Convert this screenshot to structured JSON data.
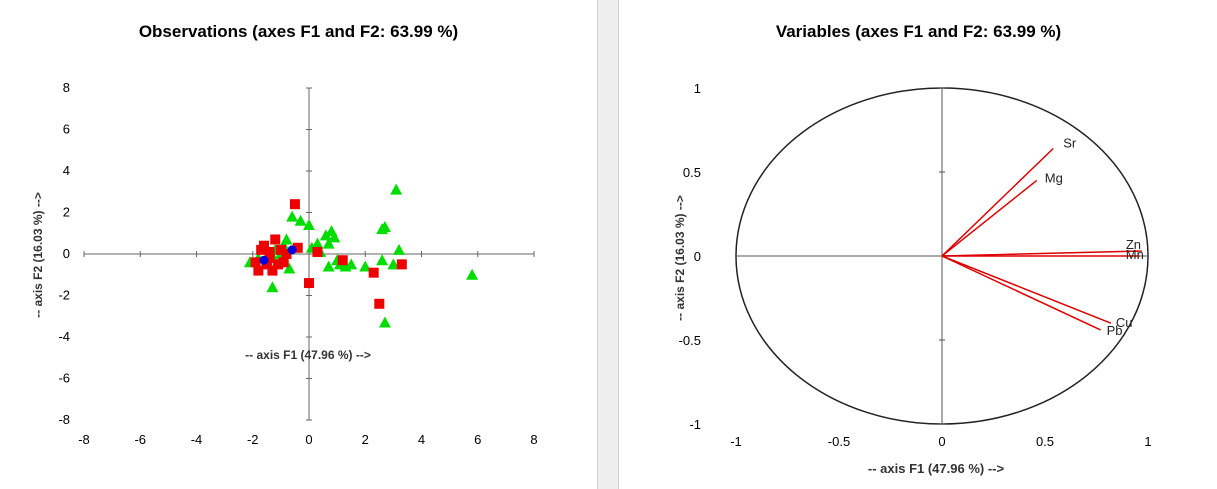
{
  "chart_data": [
    {
      "type": "scatter",
      "title": "Observations (axes F1 and F2: 63.99 %)",
      "xlabel": "-- axis F1 (47.96 %) -->",
      "ylabel": "-- axis F2 (16.03 %) -->",
      "xlim": [
        -8,
        8
      ],
      "ylim": [
        -8,
        8
      ],
      "xticks": [
        "-8",
        "-6",
        "-4",
        "-2",
        "0",
        "2",
        "4",
        "6",
        "8"
      ],
      "yticks": [
        "8",
        "6",
        "4",
        "2",
        "0",
        "-2",
        "-4",
        "-6",
        "-8"
      ],
      "grid": false,
      "series": [
        {
          "marker": "triangle",
          "color": "#00dd00",
          "points": [
            [
              -2.1,
              -0.4
            ],
            [
              -1.8,
              -0.2
            ],
            [
              -1.5,
              -0.3
            ],
            [
              -1.3,
              -0.1
            ],
            [
              -1.2,
              0.2
            ],
            [
              -1.0,
              -0.3
            ],
            [
              -0.9,
              0.4
            ],
            [
              -0.8,
              0.7
            ],
            [
              -0.7,
              -0.7
            ],
            [
              -0.6,
              1.8
            ],
            [
              -0.3,
              1.6
            ],
            [
              0.0,
              1.4
            ],
            [
              0.1,
              0.3
            ],
            [
              0.3,
              0.5
            ],
            [
              0.4,
              0.1
            ],
            [
              0.6,
              0.9
            ],
            [
              0.7,
              0.5
            ],
            [
              0.8,
              1.1
            ],
            [
              0.9,
              0.8
            ],
            [
              1.0,
              -0.3
            ],
            [
              1.1,
              -0.5
            ],
            [
              1.3,
              -0.6
            ],
            [
              1.5,
              -0.5
            ],
            [
              0.7,
              -0.6
            ],
            [
              -1.3,
              -1.6
            ],
            [
              2.0,
              -0.6
            ],
            [
              2.6,
              1.2
            ],
            [
              2.7,
              1.3
            ],
            [
              2.6,
              -0.3
            ],
            [
              2.7,
              -3.3
            ],
            [
              3.0,
              -0.5
            ],
            [
              3.1,
              3.1
            ],
            [
              3.2,
              0.2
            ],
            [
              5.8,
              -1.0
            ],
            [
              -1.0,
              0.0
            ]
          ]
        },
        {
          "marker": "square",
          "color": "#ee0000",
          "points": [
            [
              -1.9,
              -0.4
            ],
            [
              -1.8,
              -0.8
            ],
            [
              -1.6,
              0.4
            ],
            [
              -1.5,
              -0.5
            ],
            [
              -1.4,
              0.1
            ],
            [
              -1.3,
              -0.8
            ],
            [
              -1.2,
              0.7
            ],
            [
              -1.1,
              -0.5
            ],
            [
              -1.0,
              0.2
            ],
            [
              -0.9,
              -0.4
            ],
            [
              -0.8,
              0.0
            ],
            [
              -0.5,
              2.4
            ],
            [
              -0.4,
              0.3
            ],
            [
              0.0,
              -1.4
            ],
            [
              0.3,
              0.1
            ],
            [
              1.2,
              -0.3
            ],
            [
              2.3,
              -0.9
            ],
            [
              2.5,
              -2.4
            ],
            [
              3.3,
              -0.5
            ],
            [
              -1.7,
              0.2
            ],
            [
              -1.4,
              -0.2
            ]
          ]
        },
        {
          "marker": "circle",
          "color": "#0000dd",
          "points": [
            [
              -1.6,
              -0.3
            ],
            [
              -0.6,
              0.2
            ]
          ]
        }
      ]
    },
    {
      "type": "vector",
      "title": "Variables (axes F1 and F2: 63.99 %)",
      "xlabel": "-- axis F1 (47.96 %) -->",
      "ylabel": "-- axis F2 (16.03 %) -->",
      "xlim": [
        -1,
        1
      ],
      "ylim": [
        -1,
        1
      ],
      "xticks": [
        "-1",
        "-0.5",
        "0",
        "0.5",
        "1"
      ],
      "yticks": [
        "1",
        "0.5",
        "0",
        "-0.5",
        "-1"
      ],
      "grid": false,
      "vector_color": "#dd0000",
      "vectors": [
        {
          "name": "Sr",
          "x": 0.54,
          "y": 0.64
        },
        {
          "name": "Mg",
          "x": 0.46,
          "y": 0.45
        },
        {
          "name": "Zn",
          "x": 0.97,
          "y": 0.03
        },
        {
          "name": "Mn",
          "x": 0.96,
          "y": 0.0
        },
        {
          "name": "Cu",
          "x": 0.82,
          "y": -0.4
        },
        {
          "name": "Pb",
          "x": 0.77,
          "y": -0.44
        }
      ]
    }
  ]
}
